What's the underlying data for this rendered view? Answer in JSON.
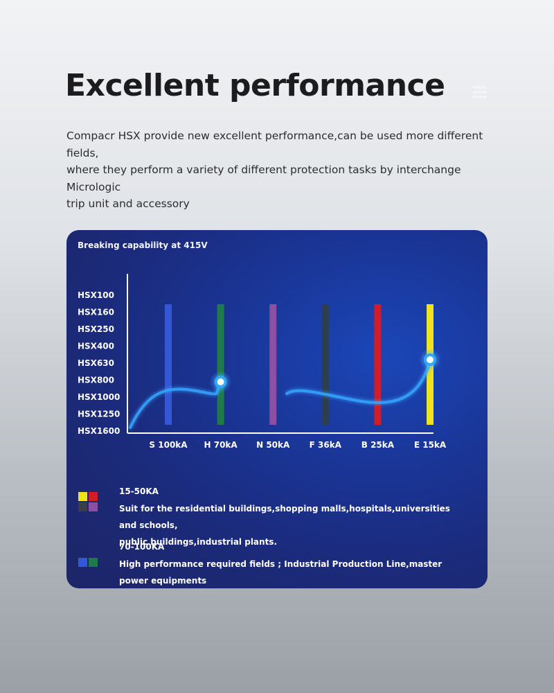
{
  "header": {
    "title": "Excellent performance",
    "description_lines": [
      "Compacr HSX provide new excellent performance,can be used more different fields,",
      "where they perform a variety of different protection tasks by interchange Micrologic",
      "trip unit and accessory"
    ],
    "menu_icon": "menu-icon"
  },
  "card": {
    "title": "Breaking capability at 415V"
  },
  "chart_data": {
    "type": "bar",
    "title": "Breaking capability at 415V",
    "y_tick_labels": [
      "HSX100",
      "HSX160",
      "HSX250",
      "HSX400",
      "HSX630",
      "HSX800",
      "HSX1000",
      "HSX1250",
      "HSX1600"
    ],
    "categories": [
      "S 100kA",
      "H 70kA",
      "N 50kA",
      "F 36kA",
      "B 25kA",
      "E 15kA"
    ],
    "bar_colors": [
      "#3457d6",
      "#1f7a4a",
      "#8c4fa3",
      "#2d3f4f",
      "#d21c26",
      "#efe321"
    ],
    "highlighted_categories": [
      "H 70kA",
      "E 15kA"
    ],
    "grid": false,
    "legend": "below"
  },
  "legend": [
    {
      "title": "15-50KA",
      "lines": [
        "Suit for the residential buildings,shopping malls,hospitals,universities and schools,",
        "public buildings,industrial plants."
      ],
      "swatches": [
        "#efe321",
        "#d21c26",
        "#3a3f46",
        "#8c4fa3"
      ]
    },
    {
      "title": "70-100KA",
      "lines": [
        "High performance required fields ; Industrial Production Line,master power equipments"
      ],
      "swatches": [
        "#3457d6",
        "#1f7a4a"
      ]
    }
  ]
}
